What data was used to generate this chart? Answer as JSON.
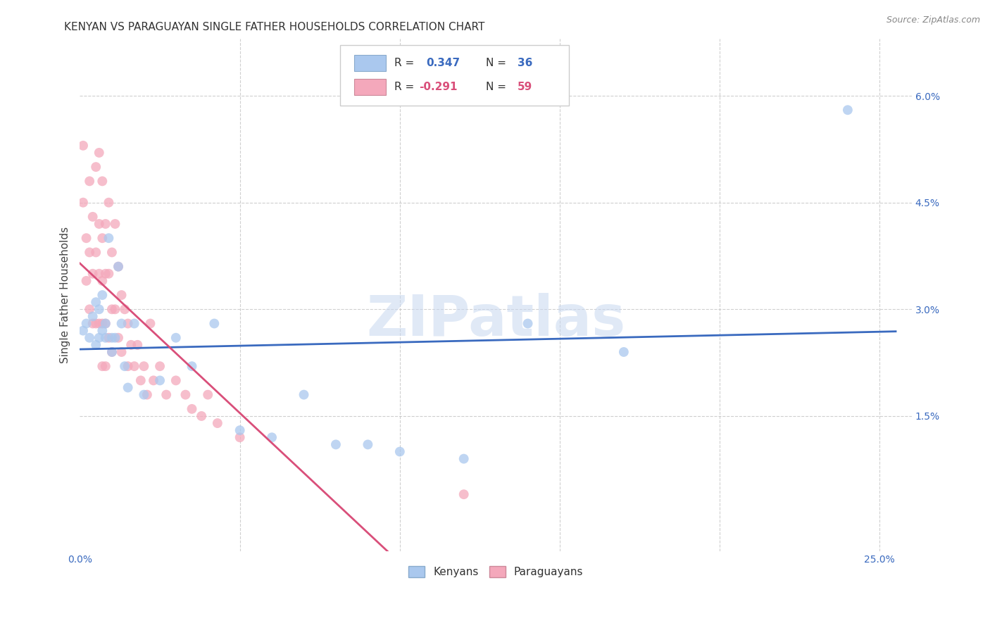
{
  "title": "KENYAN VS PARAGUAYAN SINGLE FATHER HOUSEHOLDS CORRELATION CHART",
  "source": "Source: ZipAtlas.com",
  "ylabel": "Single Father Households",
  "xlim": [
    0.0,
    0.26
  ],
  "ylim": [
    -0.004,
    0.068
  ],
  "kenyan_R": 0.347,
  "kenyan_N": 36,
  "paraguayan_R": -0.291,
  "paraguayan_N": 59,
  "kenyan_color": "#aac8ee",
  "paraguayan_color": "#f4a8bb",
  "kenyan_line_color": "#3a6abf",
  "paraguayan_line_color": "#d94f7a",
  "legend_label_kenyan": "Kenyans",
  "legend_label_paraguayan": "Paraguayans",
  "watermark": "ZIPatlas",
  "background_color": "#ffffff",
  "grid_color": "#bbbbbb",
  "kenyan_x": [
    0.001,
    0.002,
    0.003,
    0.004,
    0.005,
    0.005,
    0.006,
    0.006,
    0.007,
    0.007,
    0.008,
    0.008,
    0.009,
    0.01,
    0.01,
    0.011,
    0.012,
    0.013,
    0.014,
    0.015,
    0.017,
    0.02,
    0.025,
    0.03,
    0.035,
    0.042,
    0.05,
    0.06,
    0.07,
    0.08,
    0.09,
    0.1,
    0.12,
    0.14,
    0.17,
    0.24
  ],
  "kenyan_y": [
    0.027,
    0.028,
    0.026,
    0.029,
    0.025,
    0.031,
    0.026,
    0.03,
    0.027,
    0.032,
    0.026,
    0.028,
    0.04,
    0.026,
    0.024,
    0.026,
    0.036,
    0.028,
    0.022,
    0.019,
    0.028,
    0.018,
    0.02,
    0.026,
    0.022,
    0.028,
    0.013,
    0.012,
    0.018,
    0.011,
    0.011,
    0.01,
    0.009,
    0.028,
    0.024,
    0.058
  ],
  "paraguayan_x": [
    0.001,
    0.001,
    0.002,
    0.002,
    0.003,
    0.003,
    0.003,
    0.004,
    0.004,
    0.004,
    0.005,
    0.005,
    0.005,
    0.006,
    0.006,
    0.006,
    0.006,
    0.007,
    0.007,
    0.007,
    0.007,
    0.007,
    0.008,
    0.008,
    0.008,
    0.008,
    0.009,
    0.009,
    0.009,
    0.01,
    0.01,
    0.01,
    0.011,
    0.011,
    0.012,
    0.012,
    0.013,
    0.013,
    0.014,
    0.015,
    0.015,
    0.016,
    0.017,
    0.018,
    0.019,
    0.02,
    0.021,
    0.022,
    0.023,
    0.025,
    0.027,
    0.03,
    0.033,
    0.035,
    0.038,
    0.04,
    0.043,
    0.05,
    0.12
  ],
  "paraguayan_y": [
    0.053,
    0.045,
    0.04,
    0.034,
    0.048,
    0.038,
    0.03,
    0.043,
    0.035,
    0.028,
    0.05,
    0.038,
    0.028,
    0.052,
    0.042,
    0.035,
    0.028,
    0.048,
    0.04,
    0.034,
    0.028,
    0.022,
    0.042,
    0.035,
    0.028,
    0.022,
    0.045,
    0.035,
    0.026,
    0.038,
    0.03,
    0.024,
    0.042,
    0.03,
    0.036,
    0.026,
    0.032,
    0.024,
    0.03,
    0.028,
    0.022,
    0.025,
    0.022,
    0.025,
    0.02,
    0.022,
    0.018,
    0.028,
    0.02,
    0.022,
    0.018,
    0.02,
    0.018,
    0.016,
    0.015,
    0.018,
    0.014,
    0.012,
    0.004
  ]
}
